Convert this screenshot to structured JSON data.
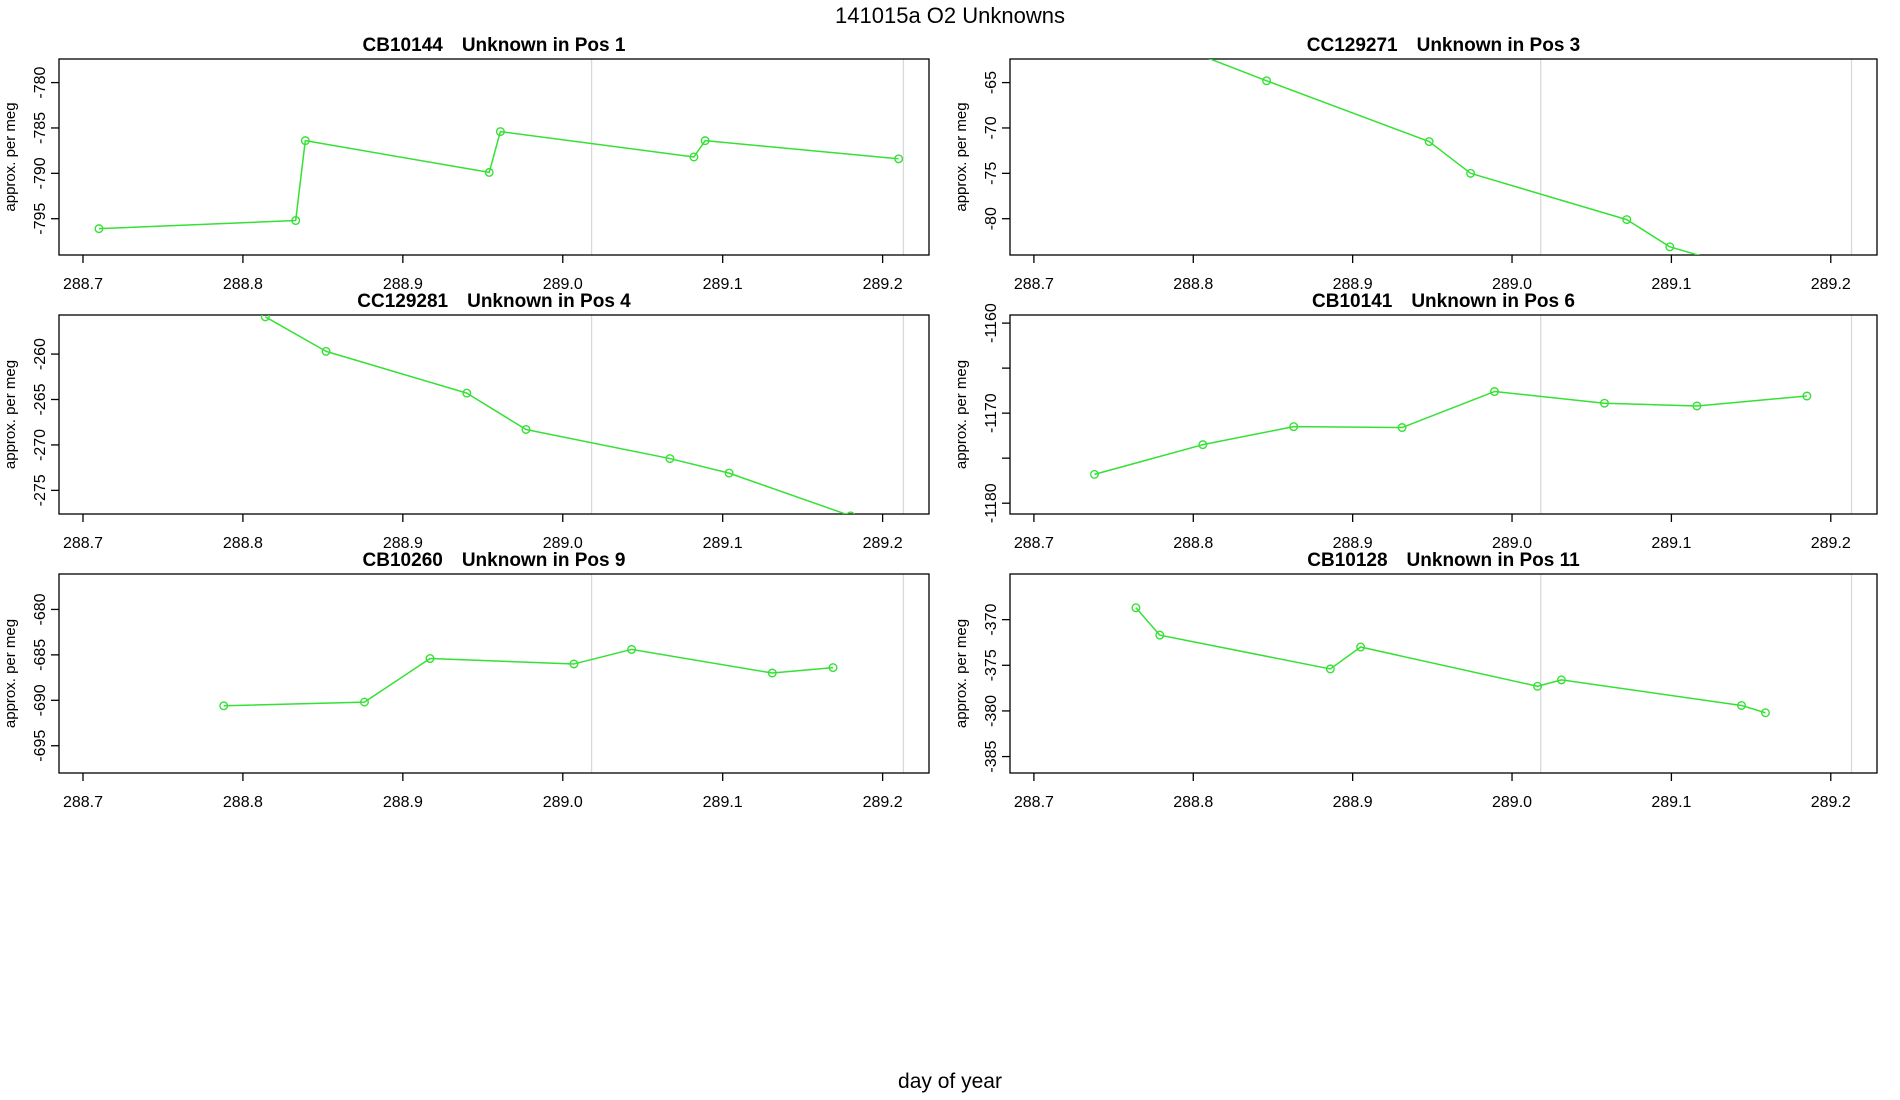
{
  "figure": {
    "title": "141015a  O2 Unknowns",
    "xlabel": "day of year",
    "ylabel": "approx. per meg"
  },
  "colors": {
    "line": "#35e135",
    "marker": "#35e135",
    "vline": "#d9d9d9",
    "axis": "#000000",
    "background": "#ffffff"
  },
  "chart_data": {
    "type": "line",
    "title": "141015a  O2 Unknowns",
    "xlabel": "day of year",
    "ylabel": "approx. per meg",
    "xlim": [
      288.685,
      289.229
    ],
    "xticks": [
      288.7,
      288.8,
      288.9,
      289.0,
      289.1,
      289.2
    ],
    "xtick_labels": [
      "288.7",
      "288.8",
      "288.9",
      "289.0",
      "289.1",
      "289.2"
    ],
    "vlines": [
      289.018,
      289.213
    ],
    "grid": "off",
    "legend": "none",
    "panels": [
      {
        "sample": "CB10144",
        "label": "Unknown in Pos 1",
        "pos": 1,
        "ylim": [
          -799.0,
          -777.4
        ],
        "yticks": [
          -780,
          -785,
          -790,
          -795
        ],
        "ytick_labels": [
          "-780",
          "-785",
          "-790",
          "-795"
        ],
        "x": [
          288.71,
          288.833,
          288.839,
          288.954,
          288.961,
          289.082,
          289.089,
          289.21
        ],
        "y": [
          -796.1,
          -795.2,
          -786.4,
          -789.9,
          -785.4,
          -788.2,
          -786.4,
          -788.4
        ]
      },
      {
        "sample": "CC129271",
        "label": "Unknown in Pos 3",
        "pos": 3,
        "ylim": [
          -84.0,
          -62.4
        ],
        "yticks": [
          -65,
          -70,
          -75,
          -80
        ],
        "ytick_labels": [
          "-65",
          "-70",
          "-75",
          "-80"
        ],
        "x": [
          288.79,
          288.846,
          288.948,
          288.974,
          289.072,
          289.099,
          289.14
        ],
        "y": [
          -61.0,
          -64.8,
          -71.5,
          -75.0,
          -80.1,
          -83.1,
          -85.2
        ]
      },
      {
        "sample": "CC129281",
        "label": "Unknown in Pos 4",
        "pos": 4,
        "ylim": [
          -277.6,
          -255.7
        ],
        "yticks": [
          -260,
          -265,
          -270,
          -275
        ],
        "ytick_labels": [
          "-260",
          "-265",
          "-270",
          "-275"
        ],
        "x": [
          288.814,
          288.852,
          288.94,
          288.977,
          289.067,
          289.104,
          289.18
        ],
        "y": [
          -255.9,
          -259.7,
          -264.3,
          -268.3,
          -271.5,
          -273.1,
          -277.8
        ]
      },
      {
        "sample": "CB10141",
        "label": "Unknown in Pos 6",
        "pos": 6,
        "ylim": [
          -1181.2,
          -1159.1
        ],
        "yticks": [
          -1160,
          -1165,
          -1170,
          -1175,
          -1180
        ],
        "ytick_labels": [
          "-1160",
          "",
          "-1170",
          "",
          "-1180"
        ],
        "x": [
          288.738,
          288.806,
          288.863,
          288.931,
          288.989,
          289.058,
          289.116,
          289.185
        ],
        "y": [
          -1176.8,
          -1173.5,
          -1171.5,
          -1171.6,
          -1167.6,
          -1168.9,
          -1169.2,
          -1168.1
        ]
      },
      {
        "sample": "CB10260",
        "label": "Unknown in Pos 9",
        "pos": 9,
        "ylim": [
          -698.0,
          -676.1
        ],
        "yticks": [
          -680,
          -685,
          -690,
          -695
        ],
        "ytick_labels": [
          "-680",
          "-685",
          "-690",
          "-695"
        ],
        "x": [
          288.788,
          288.876,
          288.917,
          289.007,
          289.043,
          289.131,
          289.169
        ],
        "y": [
          -690.6,
          -690.2,
          -685.4,
          -686.0,
          -684.4,
          -687.0,
          -686.4
        ]
      },
      {
        "sample": "CB10128",
        "label": "Unknown in Pos 11",
        "pos": 11,
        "ylim": [
          -386.8,
          -365.0
        ],
        "yticks": [
          -370,
          -375,
          -380,
          -385
        ],
        "ytick_labels": [
          "-370",
          "-375",
          "-380",
          "-385"
        ],
        "x": [
          288.764,
          288.779,
          288.886,
          288.905,
          289.016,
          289.031,
          289.144,
          289.159
        ],
        "y": [
          -368.7,
          -371.7,
          -375.4,
          -373.0,
          -377.3,
          -376.6,
          -379.4,
          -380.2
        ]
      }
    ]
  }
}
